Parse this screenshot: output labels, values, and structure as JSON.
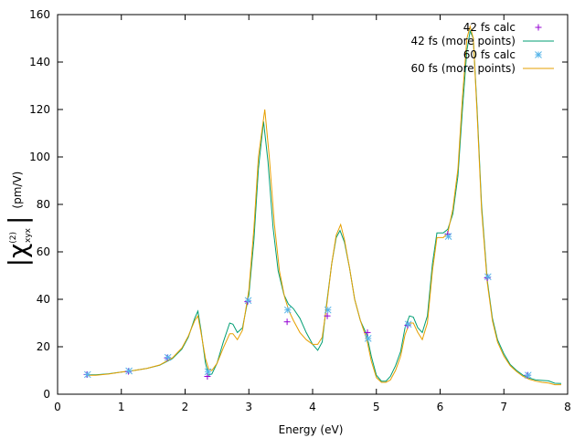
{
  "chart_data": {
    "type": "line",
    "title": "",
    "xlabel": "Energy (eV)",
    "ylabel_main": "|χ",
    "ylabel_super": "(2)",
    "ylabel_sub": "xyx",
    "ylabel_close": "|",
    "ylabel_unit": "(pm/V)",
    "xlim": [
      0,
      8
    ],
    "ylim": [
      0,
      160
    ],
    "xticks": [
      "0",
      "1",
      "2",
      "3",
      "4",
      "5",
      "6",
      "7",
      "8"
    ],
    "yticks": [
      "0",
      "20",
      "40",
      "60",
      "80",
      "100",
      "120",
      "140",
      "160"
    ],
    "grid": false,
    "legend": "top-right",
    "series": [
      {
        "name": "42 fs calc",
        "style": "points",
        "marker": "plus",
        "color": "#9400d3",
        "points": [
          [
            0.46,
            8.3
          ],
          [
            1.11,
            9.6
          ],
          [
            1.72,
            15.3
          ],
          [
            2.35,
            7.5
          ],
          [
            2.98,
            39.0
          ],
          [
            3.6,
            30.5
          ],
          [
            4.23,
            33.0
          ],
          [
            4.86,
            26.0
          ],
          [
            5.49,
            29.0
          ],
          [
            6.12,
            67.5
          ],
          [
            6.74,
            49.0
          ],
          [
            7.37,
            8.0
          ]
        ]
      },
      {
        "name": "42 fs (more points)",
        "style": "line",
        "color": "#009e73",
        "points": [
          [
            0.45,
            8.2
          ],
          [
            0.6,
            8.2
          ],
          [
            0.8,
            8.6
          ],
          [
            1.0,
            9.3
          ],
          [
            1.2,
            10.0
          ],
          [
            1.4,
            10.9
          ],
          [
            1.6,
            12.2
          ],
          [
            1.8,
            15.0
          ],
          [
            1.95,
            19.0
          ],
          [
            2.05,
            24.0
          ],
          [
            2.15,
            32.0
          ],
          [
            2.2,
            35.0
          ],
          [
            2.25,
            27.0
          ],
          [
            2.32,
            13.0
          ],
          [
            2.37,
            8.0
          ],
          [
            2.42,
            8.5
          ],
          [
            2.5,
            13.0
          ],
          [
            2.6,
            22.0
          ],
          [
            2.7,
            30.0
          ],
          [
            2.75,
            29.5
          ],
          [
            2.82,
            26.0
          ],
          [
            2.9,
            28.0
          ],
          [
            3.0,
            42.0
          ],
          [
            3.08,
            65.0
          ],
          [
            3.15,
            95.0
          ],
          [
            3.23,
            115.0
          ],
          [
            3.3,
            98.0
          ],
          [
            3.38,
            70.0
          ],
          [
            3.46,
            52.0
          ],
          [
            3.55,
            42.0
          ],
          [
            3.62,
            38.0
          ],
          [
            3.7,
            36.0
          ],
          [
            3.8,
            32.0
          ],
          [
            3.9,
            26.0
          ],
          [
            4.0,
            21.0
          ],
          [
            4.08,
            18.5
          ],
          [
            4.15,
            22.0
          ],
          [
            4.22,
            38.0
          ],
          [
            4.3,
            55.0
          ],
          [
            4.37,
            66.0
          ],
          [
            4.43,
            69.0
          ],
          [
            4.5,
            64.0
          ],
          [
            4.58,
            53.0
          ],
          [
            4.66,
            40.0
          ],
          [
            4.75,
            31.0
          ],
          [
            4.85,
            25.0
          ],
          [
            4.92,
            16.0
          ],
          [
            5.0,
            8.0
          ],
          [
            5.08,
            5.5
          ],
          [
            5.15,
            5.5
          ],
          [
            5.22,
            7.5
          ],
          [
            5.3,
            12.0
          ],
          [
            5.38,
            18.0
          ],
          [
            5.45,
            28.0
          ],
          [
            5.52,
            33.0
          ],
          [
            5.58,
            32.5
          ],
          [
            5.65,
            28.0
          ],
          [
            5.72,
            26.0
          ],
          [
            5.8,
            33.0
          ],
          [
            5.88,
            55.0
          ],
          [
            5.95,
            68.0
          ],
          [
            6.05,
            68.0
          ],
          [
            6.12,
            69.5
          ],
          [
            6.2,
            76.0
          ],
          [
            6.28,
            92.0
          ],
          [
            6.35,
            120.0
          ],
          [
            6.42,
            145.0
          ],
          [
            6.47,
            153.0
          ],
          [
            6.52,
            150.0
          ],
          [
            6.58,
            120.0
          ],
          [
            6.65,
            80.0
          ],
          [
            6.74,
            48.0
          ],
          [
            6.82,
            32.0
          ],
          [
            6.9,
            23.0
          ],
          [
            7.0,
            17.0
          ],
          [
            7.1,
            12.5
          ],
          [
            7.2,
            10.0
          ],
          [
            7.3,
            8.0
          ],
          [
            7.4,
            6.8
          ],
          [
            7.5,
            6.0
          ],
          [
            7.6,
            5.8
          ],
          [
            7.7,
            5.6
          ],
          [
            7.8,
            4.6
          ],
          [
            7.9,
            4.5
          ]
        ]
      },
      {
        "name": "60 fs calc",
        "style": "points",
        "marker": "star",
        "color": "#56b4e9",
        "points": [
          [
            0.47,
            8.3
          ],
          [
            1.12,
            9.8
          ],
          [
            1.73,
            15.5
          ],
          [
            2.36,
            9.5
          ],
          [
            2.99,
            39.5
          ],
          [
            3.61,
            35.5
          ],
          [
            4.24,
            35.5
          ],
          [
            4.87,
            23.5
          ],
          [
            5.5,
            29.5
          ],
          [
            6.13,
            66.5
          ],
          [
            6.75,
            49.5
          ],
          [
            7.38,
            8.0
          ]
        ]
      },
      {
        "name": "60 fs (more points)",
        "style": "line",
        "color": "#e69f00",
        "points": [
          [
            0.45,
            8.0
          ],
          [
            0.6,
            8.0
          ],
          [
            0.8,
            8.5
          ],
          [
            1.0,
            9.3
          ],
          [
            1.2,
            10.0
          ],
          [
            1.4,
            10.9
          ],
          [
            1.6,
            12.3
          ],
          [
            1.8,
            15.3
          ],
          [
            1.95,
            19.5
          ],
          [
            2.05,
            24.5
          ],
          [
            2.15,
            31.0
          ],
          [
            2.2,
            33.0
          ],
          [
            2.25,
            26.0
          ],
          [
            2.32,
            15.0
          ],
          [
            2.37,
            10.5
          ],
          [
            2.42,
            10.0
          ],
          [
            2.5,
            13.0
          ],
          [
            2.6,
            19.5
          ],
          [
            2.7,
            25.5
          ],
          [
            2.75,
            25.5
          ],
          [
            2.82,
            23.0
          ],
          [
            2.9,
            27.0
          ],
          [
            3.0,
            44.0
          ],
          [
            3.08,
            70.0
          ],
          [
            3.15,
            100.0
          ],
          [
            3.25,
            120.0
          ],
          [
            3.32,
            100.0
          ],
          [
            3.4,
            72.0
          ],
          [
            3.48,
            52.0
          ],
          [
            3.56,
            41.0
          ],
          [
            3.63,
            35.0
          ],
          [
            3.7,
            31.0
          ],
          [
            3.8,
            26.0
          ],
          [
            3.9,
            23.0
          ],
          [
            4.0,
            21.0
          ],
          [
            4.08,
            21.0
          ],
          [
            4.15,
            24.0
          ],
          [
            4.22,
            37.0
          ],
          [
            4.3,
            55.0
          ],
          [
            4.37,
            67.0
          ],
          [
            4.44,
            71.5
          ],
          [
            4.5,
            65.0
          ],
          [
            4.58,
            53.0
          ],
          [
            4.66,
            40.0
          ],
          [
            4.75,
            31.0
          ],
          [
            4.85,
            23.0
          ],
          [
            4.92,
            14.0
          ],
          [
            5.0,
            7.0
          ],
          [
            5.08,
            5.0
          ],
          [
            5.15,
            5.0
          ],
          [
            5.22,
            6.0
          ],
          [
            5.3,
            10.0
          ],
          [
            5.38,
            16.0
          ],
          [
            5.45,
            25.0
          ],
          [
            5.52,
            30.0
          ],
          [
            5.58,
            30.0
          ],
          [
            5.65,
            26.0
          ],
          [
            5.72,
            23.0
          ],
          [
            5.8,
            30.0
          ],
          [
            5.88,
            52.0
          ],
          [
            5.95,
            66.0
          ],
          [
            6.05,
            66.0
          ],
          [
            6.12,
            68.0
          ],
          [
            6.2,
            78.0
          ],
          [
            6.28,
            95.0
          ],
          [
            6.35,
            125.0
          ],
          [
            6.42,
            150.0
          ],
          [
            6.47,
            155.0
          ],
          [
            6.52,
            150.0
          ],
          [
            6.58,
            118.0
          ],
          [
            6.65,
            78.0
          ],
          [
            6.74,
            47.0
          ],
          [
            6.82,
            31.0
          ],
          [
            6.9,
            22.0
          ],
          [
            7.0,
            16.0
          ],
          [
            7.1,
            12.0
          ],
          [
            7.2,
            9.5
          ],
          [
            7.3,
            7.5
          ],
          [
            7.4,
            6.3
          ],
          [
            7.5,
            5.5
          ],
          [
            7.6,
            5.0
          ],
          [
            7.7,
            4.7
          ],
          [
            7.8,
            4.0
          ],
          [
            7.9,
            4.0
          ]
        ]
      }
    ]
  }
}
